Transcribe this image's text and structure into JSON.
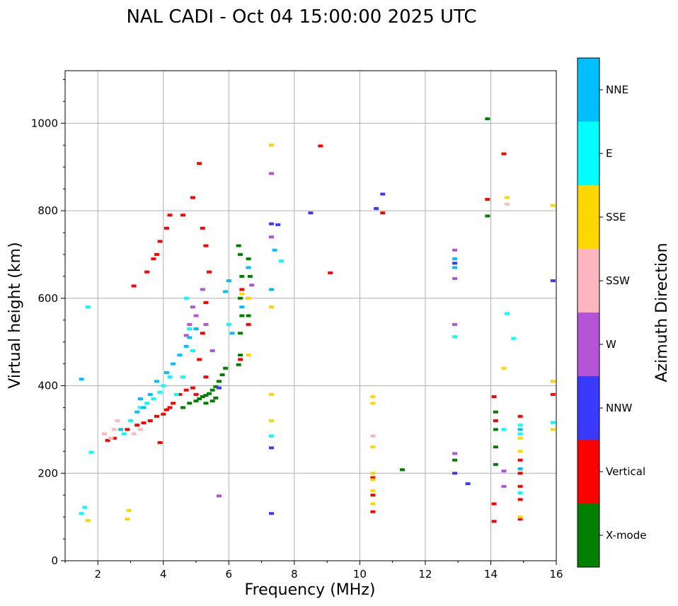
{
  "colors": {
    "X-mode": "#008000",
    "Vertical": "#ff0000",
    "NNW": "#3a3aff",
    "W": "#b455d8",
    "SSW": "#ffb6c1",
    "SSE": "#ffd700",
    "E": "#00ffff",
    "NNE": "#00bfff"
  },
  "chart_data": {
    "type": "scatter",
    "title": "NAL CADI - Oct 04 15:00:00 2025 UTC",
    "xlabel": "Frequency (MHz)",
    "ylabel": "Virtual height (km)",
    "xlim": [
      1,
      16
    ],
    "ylim": [
      0,
      1120
    ],
    "xticks": [
      2,
      4,
      6,
      8,
      10,
      12,
      14,
      16
    ],
    "yticks": [
      0,
      200,
      400,
      600,
      800,
      1000
    ],
    "grid": true,
    "colorbar": {
      "label": "Azimuth Direction",
      "categories": [
        "X-mode",
        "Vertical",
        "NNW",
        "W",
        "SSW",
        "SSE",
        "E",
        "NNE"
      ]
    },
    "series": [
      {
        "name": "X-mode",
        "points": [
          [
            4.6,
            350
          ],
          [
            4.8,
            360
          ],
          [
            5.0,
            365
          ],
          [
            5.1,
            370
          ],
          [
            5.2,
            375
          ],
          [
            5.3,
            378
          ],
          [
            5.4,
            382
          ],
          [
            5.5,
            390
          ],
          [
            5.6,
            398
          ],
          [
            5.7,
            410
          ],
          [
            5.8,
            425
          ],
          [
            5.9,
            440
          ],
          [
            5.3,
            360
          ],
          [
            5.5,
            365
          ],
          [
            5.6,
            372
          ],
          [
            6.3,
            448
          ],
          [
            6.35,
            470
          ],
          [
            6.35,
            520
          ],
          [
            6.4,
            560
          ],
          [
            6.35,
            600
          ],
          [
            6.4,
            650
          ],
          [
            6.35,
            700
          ],
          [
            6.3,
            720
          ],
          [
            6.6,
            560
          ],
          [
            6.65,
            650
          ],
          [
            6.6,
            690
          ],
          [
            11.3,
            208
          ],
          [
            13.9,
            788
          ],
          [
            13.9,
            1010
          ],
          [
            14.15,
            340
          ],
          [
            14.15,
            300
          ],
          [
            14.15,
            260
          ],
          [
            14.15,
            220
          ],
          [
            12.9,
            230
          ]
        ]
      },
      {
        "name": "Vertical",
        "points": [
          [
            2.3,
            275
          ],
          [
            2.5,
            280
          ],
          [
            2.9,
            300
          ],
          [
            3.2,
            310
          ],
          [
            3.4,
            315
          ],
          [
            3.6,
            320
          ],
          [
            3.8,
            330
          ],
          [
            4.0,
            335
          ],
          [
            4.1,
            345
          ],
          [
            4.2,
            350
          ],
          [
            4.3,
            360
          ],
          [
            4.5,
            380
          ],
          [
            4.7,
            390
          ],
          [
            4.9,
            395
          ],
          [
            5.0,
            380
          ],
          [
            5.3,
            420
          ],
          [
            5.1,
            460
          ],
          [
            5.2,
            520
          ],
          [
            5.3,
            590
          ],
          [
            5.4,
            660
          ],
          [
            5.3,
            720
          ],
          [
            5.2,
            760
          ],
          [
            5.1,
            908
          ],
          [
            4.9,
            830
          ],
          [
            4.6,
            790
          ],
          [
            4.2,
            790
          ],
          [
            4.1,
            760
          ],
          [
            3.9,
            730
          ],
          [
            3.8,
            700
          ],
          [
            3.7,
            690
          ],
          [
            3.5,
            660
          ],
          [
            3.1,
            628
          ],
          [
            3.9,
            270
          ],
          [
            6.35,
            460
          ],
          [
            6.4,
            620
          ],
          [
            6.6,
            540
          ],
          [
            8.8,
            948
          ],
          [
            9.1,
            658
          ],
          [
            10.4,
            112
          ],
          [
            10.4,
            150
          ],
          [
            10.4,
            190
          ],
          [
            10.7,
            795
          ],
          [
            13.9,
            826
          ],
          [
            14.1,
            90
          ],
          [
            14.1,
            130
          ],
          [
            14.1,
            375
          ],
          [
            14.15,
            320
          ],
          [
            14.4,
            930
          ],
          [
            14.9,
            95
          ],
          [
            14.9,
            140
          ],
          [
            14.9,
            170
          ],
          [
            14.9,
            200
          ],
          [
            14.9,
            230
          ],
          [
            14.9,
            330
          ],
          [
            15.9,
            380
          ]
        ]
      },
      {
        "name": "NNW",
        "points": [
          [
            7.3,
            108
          ],
          [
            7.3,
            258
          ],
          [
            7.3,
            770
          ],
          [
            7.5,
            768
          ],
          [
            8.5,
            795
          ],
          [
            10.5,
            805
          ],
          [
            10.7,
            838
          ],
          [
            12.9,
            200
          ],
          [
            12.9,
            680
          ],
          [
            13.3,
            176
          ],
          [
            15.9,
            640
          ],
          [
            5.7,
            395
          ]
        ]
      },
      {
        "name": "W",
        "points": [
          [
            4.7,
            515
          ],
          [
            4.8,
            540
          ],
          [
            5.0,
            560
          ],
          [
            4.9,
            580
          ],
          [
            5.2,
            620
          ],
          [
            5.5,
            480
          ],
          [
            5.3,
            540
          ],
          [
            6.6,
            600
          ],
          [
            6.7,
            630
          ],
          [
            7.3,
            740
          ],
          [
            7.3,
            885
          ],
          [
            12.9,
            540
          ],
          [
            12.9,
            645
          ],
          [
            12.9,
            710
          ],
          [
            12.9,
            245
          ],
          [
            14.4,
            170
          ],
          [
            14.4,
            205
          ],
          [
            5.7,
            148
          ]
        ]
      },
      {
        "name": "SSW",
        "points": [
          [
            2.2,
            290
          ],
          [
            2.4,
            280
          ],
          [
            2.5,
            300
          ],
          [
            2.6,
            320
          ],
          [
            3.1,
            290
          ],
          [
            3.3,
            300
          ],
          [
            10.4,
            285
          ],
          [
            14.5,
            815
          ]
        ]
      },
      {
        "name": "SSE",
        "points": [
          [
            1.7,
            92
          ],
          [
            2.9,
            95
          ],
          [
            2.95,
            115
          ],
          [
            6.4,
            610
          ],
          [
            6.6,
            600
          ],
          [
            6.6,
            470
          ],
          [
            7.3,
            950
          ],
          [
            7.3,
            580
          ],
          [
            7.3,
            380
          ],
          [
            7.3,
            320
          ],
          [
            10.4,
            130
          ],
          [
            10.4,
            160
          ],
          [
            10.4,
            185
          ],
          [
            10.4,
            200
          ],
          [
            10.4,
            260
          ],
          [
            10.4,
            360
          ],
          [
            10.4,
            375
          ],
          [
            14.4,
            440
          ],
          [
            14.5,
            830
          ],
          [
            15.9,
            300
          ],
          [
            15.9,
            410
          ],
          [
            15.9,
            812
          ],
          [
            14.9,
            100
          ],
          [
            14.9,
            250
          ],
          [
            14.9,
            280
          ]
        ]
      },
      {
        "name": "E",
        "points": [
          [
            1.5,
            108
          ],
          [
            1.6,
            122
          ],
          [
            1.7,
            580
          ],
          [
            1.8,
            248
          ],
          [
            2.8,
            290
          ],
          [
            3.0,
            320
          ],
          [
            3.3,
            350
          ],
          [
            3.5,
            360
          ],
          [
            3.7,
            370
          ],
          [
            3.9,
            385
          ],
          [
            4.0,
            400
          ],
          [
            4.2,
            420
          ],
          [
            4.4,
            380
          ],
          [
            4.6,
            420
          ],
          [
            4.7,
            600
          ],
          [
            4.8,
            530
          ],
          [
            4.9,
            480
          ],
          [
            6.0,
            540
          ],
          [
            7.3,
            285
          ],
          [
            7.6,
            685
          ],
          [
            12.9,
            512
          ],
          [
            14.4,
            300
          ],
          [
            14.5,
            565
          ],
          [
            14.7,
            508
          ],
          [
            14.9,
            290
          ],
          [
            14.9,
            310
          ],
          [
            14.9,
            155
          ],
          [
            15.9,
            316
          ]
        ]
      },
      {
        "name": "NNE",
        "points": [
          [
            1.5,
            415
          ],
          [
            2.7,
            300
          ],
          [
            3.2,
            340
          ],
          [
            3.3,
            370
          ],
          [
            3.4,
            350
          ],
          [
            3.6,
            380
          ],
          [
            3.8,
            410
          ],
          [
            4.1,
            430
          ],
          [
            4.3,
            450
          ],
          [
            4.5,
            470
          ],
          [
            4.7,
            490
          ],
          [
            4.8,
            510
          ],
          [
            5.0,
            530
          ],
          [
            5.9,
            615
          ],
          [
            6.0,
            640
          ],
          [
            6.1,
            520
          ],
          [
            6.4,
            580
          ],
          [
            6.6,
            670
          ],
          [
            7.3,
            620
          ],
          [
            7.4,
            710
          ],
          [
            12.9,
            690
          ],
          [
            12.9,
            670
          ],
          [
            14.9,
            210
          ],
          [
            14.9,
            300
          ]
        ]
      }
    ]
  }
}
